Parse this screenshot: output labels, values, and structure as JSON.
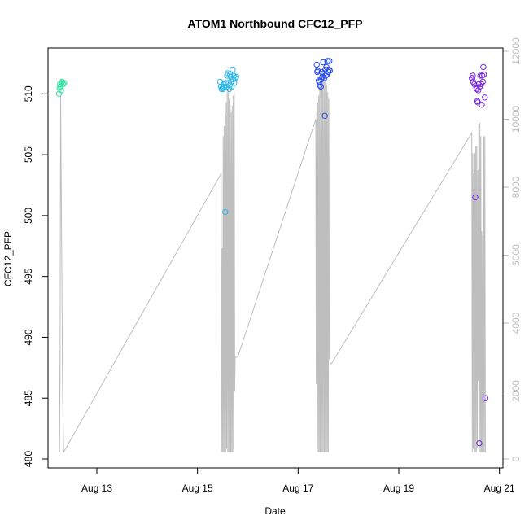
{
  "chart_data": {
    "type": "scatter",
    "title": "ATOM1 Northbound CFC12_PFP",
    "xlabel": "Date",
    "ylabel": "CFC12_PFP",
    "x_unit": "days in August",
    "xlim": [
      12.03,
      21.07
    ],
    "ylim": [
      480,
      513.5
    ],
    "y2lim": [
      0,
      12000
    ],
    "x_ticks": [
      {
        "value": 13,
        "label": "Aug 13"
      },
      {
        "value": 15,
        "label": "Aug 15"
      },
      {
        "value": 17,
        "label": "Aug 17"
      },
      {
        "value": 19,
        "label": "Aug 19"
      },
      {
        "value": 21,
        "label": "Aug 21"
      }
    ],
    "y_ticks": [
      480,
      485,
      490,
      495,
      500,
      505,
      510
    ],
    "y2_ticks": [
      0,
      2000,
      4000,
      6000,
      8000,
      10000,
      12000
    ],
    "grid": false,
    "legend": "none",
    "secondary_series": {
      "axis": "right",
      "color": "#bebebe",
      "x": [
        12.25,
        12.26,
        12.27,
        12.28,
        12.3,
        12.32,
        12.34,
        15.47,
        15.48,
        15.49,
        15.5,
        15.51,
        15.52,
        15.53,
        15.54,
        15.55,
        15.56,
        15.57,
        15.58,
        15.59,
        15.6,
        15.61,
        15.62,
        15.63,
        15.64,
        15.65,
        15.66,
        15.67,
        15.68,
        15.69,
        15.7,
        15.71,
        15.72,
        15.73,
        15.74,
        15.75,
        15.78,
        15.8,
        17.35,
        17.36,
        17.37,
        17.38,
        17.39,
        17.4,
        17.41,
        17.42,
        17.43,
        17.44,
        17.45,
        17.46,
        17.47,
        17.48,
        17.49,
        17.5,
        17.51,
        17.52,
        17.53,
        17.54,
        17.55,
        17.56,
        17.57,
        17.58,
        17.59,
        17.6,
        17.61,
        17.62,
        17.64,
        17.66,
        20.45,
        20.46,
        20.47,
        20.48,
        20.49,
        20.5,
        20.51,
        20.52,
        20.53,
        20.54,
        20.55,
        20.56,
        20.57,
        20.58,
        20.59,
        20.6,
        20.61,
        20.62,
        20.63,
        20.64,
        20.65,
        20.66,
        20.67,
        20.68,
        20.69,
        20.7,
        20.71,
        20.72,
        20.74
      ],
      "y": [
        3200,
        200,
        2500,
        10700,
        6500,
        2000,
        200,
        8400,
        200,
        6200,
        200,
        9500,
        200,
        9800,
        200,
        10200,
        200,
        10500,
        300,
        10800,
        200,
        10900,
        200,
        10600,
        200,
        10400,
        200,
        10200,
        200,
        10400,
        200,
        10700,
        200,
        10800,
        2000,
        3000,
        3000,
        3000,
        10000,
        2200,
        10200,
        200,
        10500,
        200,
        10700,
        200,
        11000,
        200,
        11200,
        200,
        11300,
        200,
        11400,
        200,
        11300,
        200,
        11200,
        200,
        11100,
        200,
        11000,
        200,
        10800,
        200,
        10600,
        3000,
        2800,
        2800,
        9600,
        200,
        9000,
        300,
        8400,
        200,
        9000,
        200,
        9200,
        200,
        9200,
        300,
        8500,
        2300,
        9800,
        200,
        9900,
        200,
        9500,
        200,
        6700,
        200,
        6600,
        200,
        9500,
        200,
        9500,
        200,
        200
      ]
    },
    "series": [
      {
        "color": "#31e39e",
        "x": [
          12.25,
          12.26,
          12.27,
          12.28,
          12.29,
          12.3,
          12.31,
          12.33,
          12.35
        ],
        "y": [
          510.0,
          510.5,
          510.8,
          510.6,
          510.3,
          510.9,
          511.0,
          510.8,
          510.9
        ]
      },
      {
        "color": "#2bb8e8",
        "x": [
          15.45,
          15.47,
          15.48,
          15.5,
          15.51,
          15.52,
          15.53,
          15.55,
          15.56,
          15.58,
          15.59,
          15.6,
          15.62,
          15.63,
          15.64,
          15.65,
          15.66,
          15.67,
          15.68,
          15.7,
          15.71,
          15.72,
          15.73,
          15.75,
          15.77
        ],
        "y": [
          511.0,
          510.6,
          510.4,
          510.5,
          510.4,
          510.8,
          510.6,
          500.3,
          510.9,
          510.6,
          511.5,
          511.7,
          510.9,
          510.4,
          510.7,
          511.6,
          511.4,
          511.0,
          510.6,
          512.0,
          511.2,
          511.5,
          510.9,
          511.3,
          511.4
        ]
      },
      {
        "color": "#2a4ef0",
        "x": [
          17.37,
          17.38,
          17.39,
          17.41,
          17.42,
          17.43,
          17.45,
          17.46,
          17.47,
          17.48,
          17.5,
          17.51,
          17.52,
          17.53,
          17.54,
          17.55,
          17.56,
          17.57,
          17.58,
          17.59,
          17.6,
          17.61,
          17.62,
          17.63
        ],
        "y": [
          512.4,
          511.8,
          511.9,
          511.1,
          511.0,
          510.7,
          510.6,
          511.2,
          511.8,
          511.4,
          512.6,
          511.7,
          511.3,
          508.2,
          512.0,
          511.5,
          512.2,
          511.6,
          512.7,
          512.7,
          511.8,
          512.0,
          512.7,
          511.9
        ]
      },
      {
        "color": "#7b2ae6",
        "x": [
          20.45,
          20.46,
          20.47,
          20.48,
          20.5,
          20.52,
          20.54,
          20.55,
          20.56,
          20.57,
          20.58,
          20.59,
          20.6,
          20.61,
          20.62,
          20.64,
          20.65,
          20.66,
          20.67,
          20.68,
          20.69,
          20.71,
          20.72
        ],
        "y": [
          511.3,
          511.3,
          511.5,
          511.0,
          510.8,
          501.5,
          510.5,
          510.4,
          509.4,
          509.3,
          510.3,
          510.8,
          481.3,
          510.6,
          511.5,
          510.8,
          509.1,
          511.5,
          511.0,
          512.2,
          511.6,
          509.7,
          485.0
        ]
      }
    ]
  }
}
